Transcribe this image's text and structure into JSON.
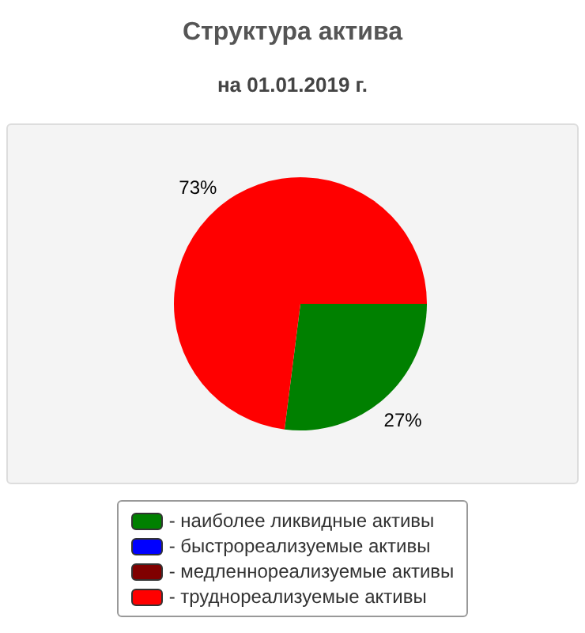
{
  "chart_data": {
    "type": "pie",
    "title": "Структура актива",
    "subtitle": "на 01.01.2019 г.",
    "categories": [
      "- наиболее ликвидные активы",
      "- быстрореализуемые активы",
      "- медленнореализуемые активы",
      "- труднореализуемые активы"
    ],
    "values": [
      27,
      0,
      0,
      73
    ],
    "colors": [
      "#008000",
      "#0000ff",
      "#800000",
      "#ff0000"
    ],
    "value_labels": [
      "27%",
      null,
      null,
      "73%"
    ],
    "legend": "bottom"
  }
}
